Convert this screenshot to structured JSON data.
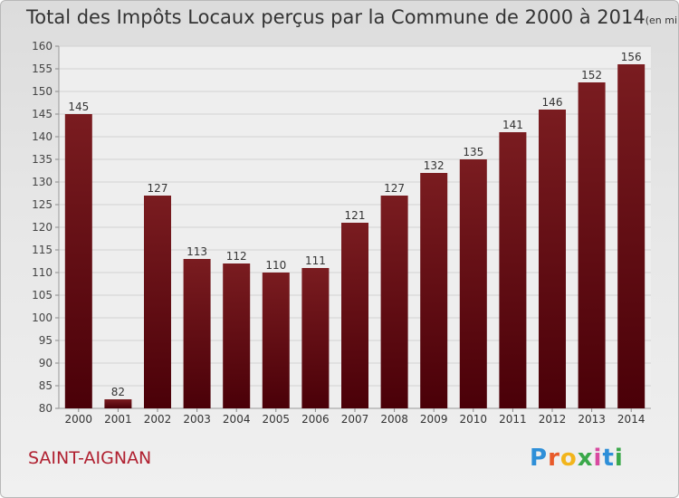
{
  "title": "Total des Impôts Locaux perçus par la Commune de 2000 à 2014",
  "unit_label": "(en milliers d'€)",
  "commune": "SAINT-AIGNAN",
  "logo": {
    "letters": [
      {
        "ch": "P",
        "color": "#2e8fd8"
      },
      {
        "ch": "r",
        "color": "#e85a2a"
      },
      {
        "ch": "o",
        "color": "#f2b51c"
      },
      {
        "ch": "x",
        "color": "#3aa84a"
      },
      {
        "ch": "i",
        "color": "#d84aa0"
      },
      {
        "ch": "t",
        "color": "#2e8fd8"
      },
      {
        "ch": "i",
        "color": "#3aa84a"
      }
    ]
  },
  "colors": {
    "bar": "#7a1c20",
    "bar_dark": "#4a0008"
  },
  "chart_data": {
    "type": "bar",
    "categories": [
      "2000",
      "2001",
      "2002",
      "2003",
      "2004",
      "2005",
      "2006",
      "2007",
      "2008",
      "2009",
      "2010",
      "2011",
      "2012",
      "2013",
      "2014"
    ],
    "values": [
      145,
      82,
      127,
      113,
      112,
      110,
      111,
      121,
      127,
      132,
      135,
      141,
      146,
      152,
      156
    ],
    "title": "Total des Impôts Locaux perçus par la Commune de 2000 à 2014",
    "ylim": [
      80,
      160
    ],
    "yticks": [
      80,
      85,
      90,
      95,
      100,
      105,
      110,
      115,
      120,
      125,
      130,
      135,
      140,
      145,
      150,
      155,
      160
    ],
    "grid": true
  }
}
